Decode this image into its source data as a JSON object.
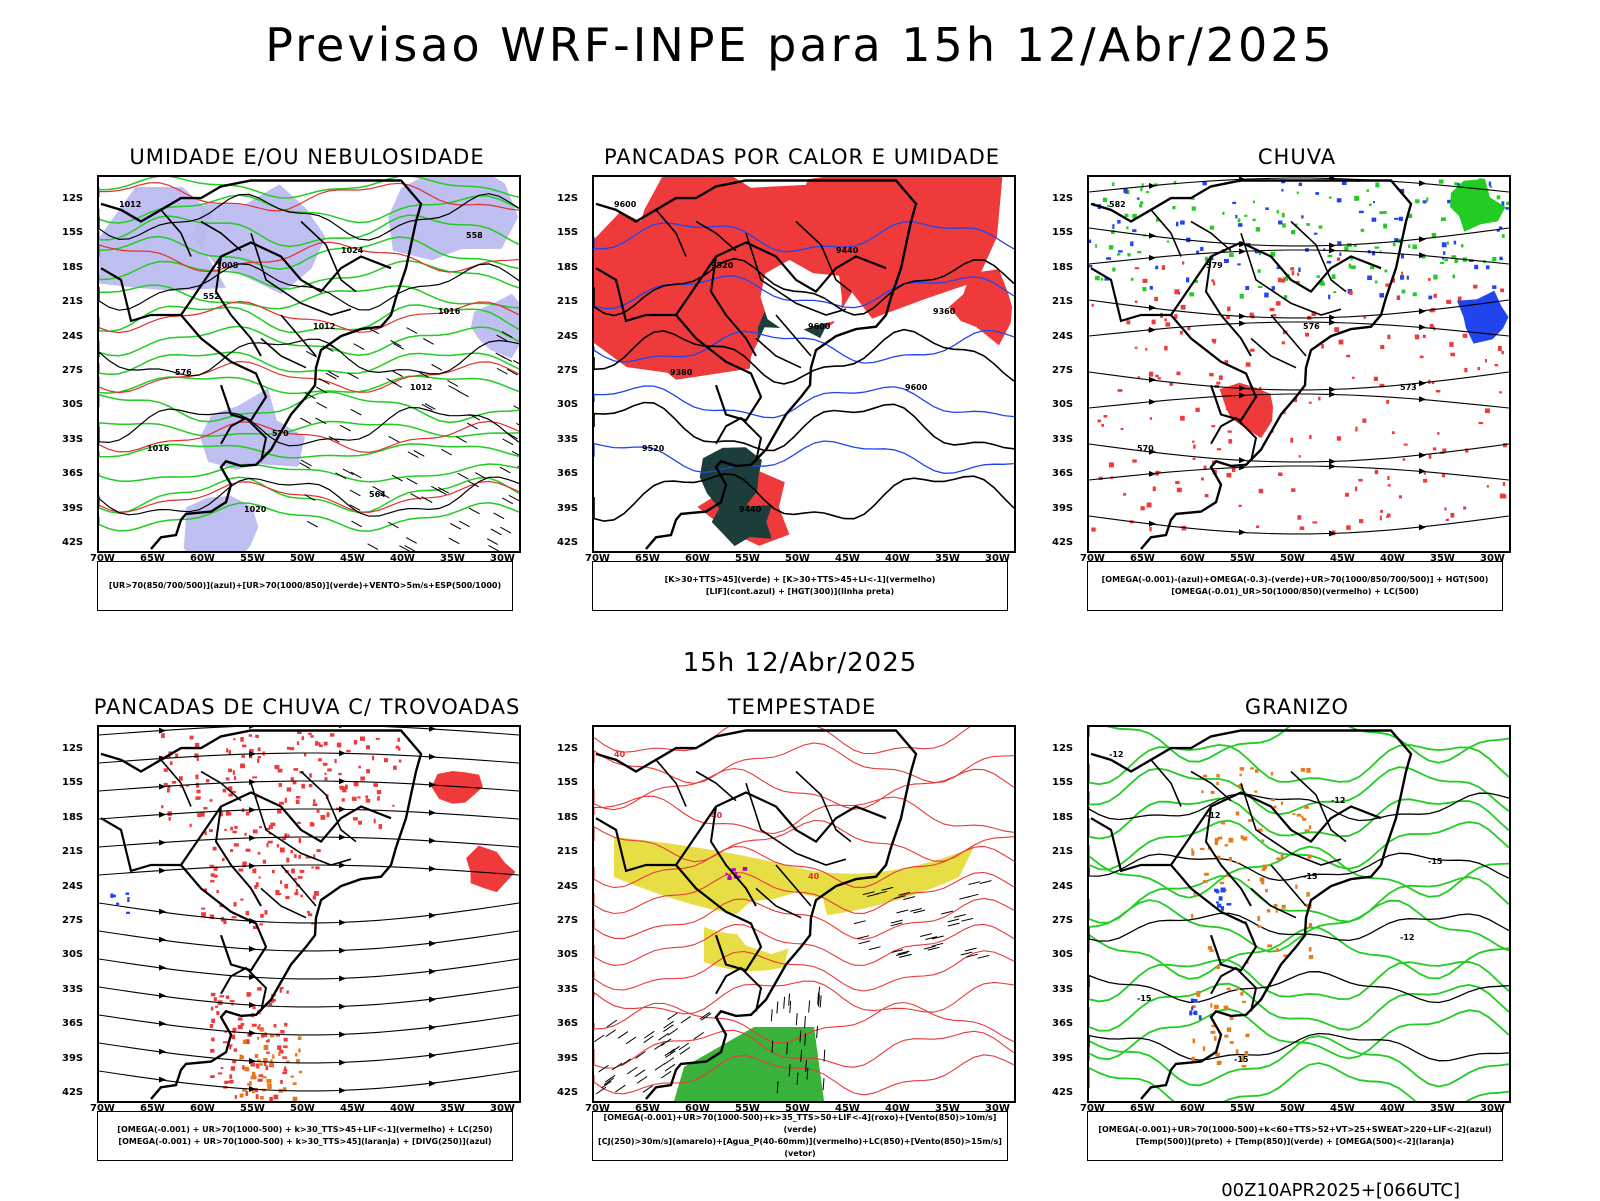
{
  "title": "Previsao WRF-INPE  para 15h 12/Abr/2025",
  "subtitle": "15h 12/Abr/2025",
  "footer": "00Z10APR2025+[066UTC]",
  "axes": {
    "lat_labels": [
      "12S",
      "15S",
      "18S",
      "21S",
      "24S",
      "27S",
      "30S",
      "33S",
      "36S",
      "39S",
      "42S"
    ],
    "lon_labels": [
      "70W",
      "65W",
      "60W",
      "55W",
      "50W",
      "45W",
      "40W",
      "35W",
      "30W"
    ]
  },
  "panels": [
    {
      "id": "umidade",
      "title": "UMIDADE E/OU NEBULOSIDADE",
      "legend": [
        "[UR>70(850/700/500)](azul)+[UR>70(1000/850)](verde)+VENTO>5m/s+ESP(500/1000)"
      ],
      "contour_labels": [
        "1012",
        "1008",
        "1012",
        "1012",
        "1016",
        "1020",
        "1024",
        "1016",
        "576",
        "570",
        "564",
        "558",
        "552"
      ]
    },
    {
      "id": "pancadas_calor",
      "title": "PANCADAS POR CALOR E UMIDADE",
      "legend": [
        "[K>30+TTS>45](verde) + [K>30+TTS>45+LI<-1](vermelho)",
        "[LIF](cont.azul) + [HGT(300)](linha preta)"
      ],
      "contour_labels": [
        "9600",
        "9520",
        "9600",
        "9600",
        "9520",
        "9440",
        "9440",
        "9360",
        "9380"
      ]
    },
    {
      "id": "chuva",
      "title": "CHUVA",
      "legend": [
        "[OMEGA(-0.001)-(azul)+OMEGA(-0.3)-(verde)+UR>70(1000/850/700/500)] + HGT(500)",
        "[OMEGA(-0.01)_UR>50(1000/850)(vermelho) + LC(500)"
      ],
      "contour_labels": [
        "582",
        "579",
        "576",
        "573",
        "570"
      ]
    },
    {
      "id": "pancadas_trovoadas",
      "title": "PANCADAS DE CHUVA C/ TROVOADAS",
      "legend": [
        "[OMEGA(-0.001) + UR>70(1000-500) + k>30_TTS>45+LIF<-1](vermelho) + LC(250)",
        "[OMEGA(-0.001) + UR>70(1000-500) + k>30_TTS>45](laranja) + [DIVG(250)](azul)"
      ],
      "contour_labels": []
    },
    {
      "id": "tempestade",
      "title": "TEMPESTADE",
      "legend": [
        "[OMEGA(-0.001)+UR>70(1000-500)+k>35_TTS>50+LIF<-4](roxo)+[Vento(850)>10m/s](verde)",
        "[CJ(250)>30m/s](amarelo)+[Agua_P(40-60mm)](vermelho)+LC(850)+[Vento(850)>15m/s](vetor)"
      ],
      "contour_labels": [
        "40",
        "40",
        "40"
      ]
    },
    {
      "id": "granizo",
      "title": "GRANIZO",
      "legend": [
        "[OMEGA(-0.001)+UR>70(1000-500)+k<60+TTS>52+VT>25+SWEAT>220+LIF<-2](azul)",
        "[Temp(500)](preto) + [Temp(850)](verde) + [OMEGA(500)<-2](laranja)"
      ],
      "contour_labels": [
        "-12",
        "-12",
        "-15",
        "-12",
        "-15",
        "-15",
        "-12",
        "-15"
      ]
    }
  ],
  "colors": {
    "red": "#ee3a3a",
    "green": "#22cc22",
    "blue": "#2244ee",
    "lavender": "#b8b8f0",
    "yellow": "#e6dc3c",
    "darkgreen": "#1d3d3a",
    "orange": "#e67a20"
  }
}
